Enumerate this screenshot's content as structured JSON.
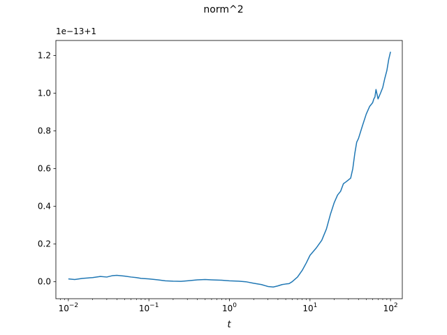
{
  "chart_data": {
    "type": "line",
    "title": "norm^2",
    "xlabel": "t",
    "ylabel": "",
    "y_offset_label": "1e−13+1",
    "xscale": "log",
    "xlim": [
      0.007,
      140
    ],
    "ylim": [
      -0.09,
      1.28
    ],
    "grid": false,
    "legend": "none",
    "x_ticks": [
      {
        "value": 0.01,
        "base": "10",
        "exp": "−2"
      },
      {
        "value": 0.1,
        "base": "10",
        "exp": "−1"
      },
      {
        "value": 1,
        "base": "10",
        "exp": "0"
      },
      {
        "value": 10,
        "base": "10",
        "exp": "1"
      },
      {
        "value": 100,
        "base": "10",
        "exp": "2"
      }
    ],
    "y_ticks": [
      {
        "value": 0.0,
        "label": "0.0"
      },
      {
        "value": 0.2,
        "label": "0.2"
      },
      {
        "value": 0.4,
        "label": "0.4"
      },
      {
        "value": 0.6,
        "label": "0.6"
      },
      {
        "value": 0.8,
        "label": "0.8"
      },
      {
        "value": 1.0,
        "label": "1.0"
      },
      {
        "value": 1.2,
        "label": "1.2"
      }
    ],
    "series": [
      {
        "color": "#1f77b4",
        "x": [
          0.01,
          0.012,
          0.015,
          0.02,
          0.025,
          0.03,
          0.035,
          0.04,
          0.05,
          0.06,
          0.07,
          0.08,
          0.1,
          0.13,
          0.16,
          0.2,
          0.25,
          0.3,
          0.4,
          0.5,
          0.6,
          0.8,
          1.0,
          1.3,
          1.6,
          2.0,
          2.5,
          3.0,
          3.5,
          4.0,
          4.5,
          5.0,
          5.5,
          6.0,
          7.0,
          8.0,
          9.0,
          10,
          12,
          14,
          16,
          18,
          20,
          22,
          24,
          26,
          28,
          30,
          32,
          34,
          36,
          38,
          40,
          45,
          50,
          55,
          60,
          62,
          64,
          66,
          70,
          75,
          80,
          85,
          90,
          95,
          100
        ],
        "y": [
          0.015,
          0.012,
          0.018,
          0.022,
          0.028,
          0.025,
          0.032,
          0.034,
          0.03,
          0.025,
          0.022,
          0.018,
          0.015,
          0.01,
          0.005,
          0.003,
          0.002,
          0.005,
          0.01,
          0.012,
          0.01,
          0.008,
          0.005,
          0.003,
          0.0,
          -0.008,
          -0.015,
          -0.025,
          -0.028,
          -0.022,
          -0.015,
          -0.012,
          -0.01,
          0.0,
          0.025,
          0.06,
          0.1,
          0.14,
          0.18,
          0.22,
          0.28,
          0.36,
          0.42,
          0.46,
          0.48,
          0.52,
          0.53,
          0.54,
          0.55,
          0.6,
          0.68,
          0.74,
          0.76,
          0.83,
          0.89,
          0.93,
          0.95,
          0.97,
          0.98,
          1.02,
          0.97,
          1.0,
          1.03,
          1.08,
          1.12,
          1.18,
          1.22
        ]
      }
    ]
  }
}
